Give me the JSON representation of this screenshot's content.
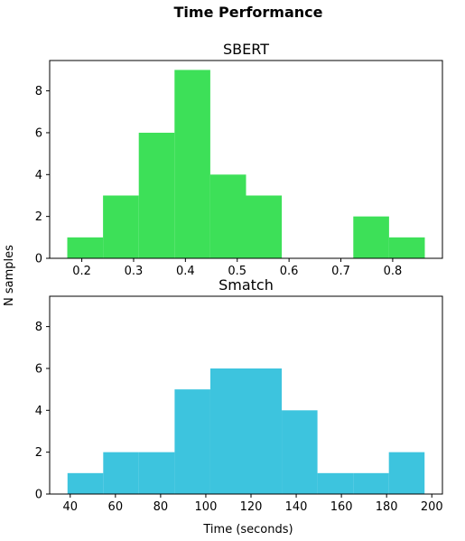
{
  "figure": {
    "title": "Time Performance",
    "ylabel": "N samples",
    "xlabel": "Time (seconds)"
  },
  "chart_data": [
    {
      "type": "bar",
      "title": "SBERT",
      "color": "#3de058",
      "bin_edges": [
        0.172,
        0.241,
        0.31,
        0.379,
        0.448,
        0.517,
        0.586,
        0.655,
        0.724,
        0.793,
        0.862
      ],
      "values": [
        1,
        3,
        6,
        9,
        4,
        3,
        0,
        0,
        2,
        1
      ],
      "xlim": [
        0.138,
        0.896
      ],
      "ylim": [
        0,
        9.45
      ],
      "xticks": [
        0.2,
        0.3,
        0.4,
        0.5,
        0.6,
        0.7,
        0.8
      ],
      "xtick_labels": [
        "0.2",
        "0.3",
        "0.4",
        "0.5",
        "0.6",
        "0.7",
        "0.8"
      ],
      "yticks": [
        0,
        2,
        4,
        6,
        8
      ],
      "ytick_labels": [
        "0",
        "2",
        "4",
        "6",
        "8"
      ]
    },
    {
      "type": "bar",
      "title": "Smatch",
      "color": "#3dc4de",
      "bin_edges": [
        38.8,
        54.6,
        70.4,
        86.2,
        102.0,
        117.8,
        133.6,
        149.4,
        165.2,
        181.0,
        196.8
      ],
      "values": [
        1,
        2,
        2,
        5,
        6,
        6,
        4,
        1,
        1,
        2
      ],
      "xlim": [
        30.9,
        204.7
      ],
      "ylim": [
        0,
        9.45
      ],
      "xticks": [
        40,
        60,
        80,
        100,
        120,
        140,
        160,
        180,
        200
      ],
      "xtick_labels": [
        "40",
        "60",
        "80",
        "100",
        "120",
        "140",
        "160",
        "180",
        "200"
      ],
      "yticks": [
        0,
        2,
        4,
        6,
        8
      ],
      "ytick_labels": [
        "0",
        "2",
        "4",
        "6",
        "8"
      ]
    }
  ]
}
